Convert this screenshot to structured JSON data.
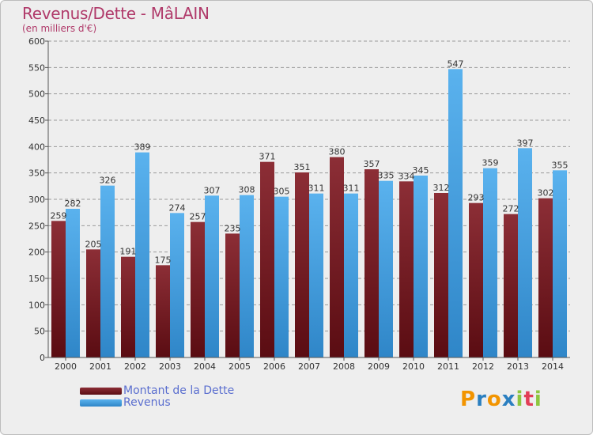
{
  "chart_title": "Revenus/Dette - MâLAIN",
  "chart_subtitle": "(en milliers d'€)",
  "colors": {
    "dette": "#7a1e28",
    "revenus": "#4aa3e0",
    "title": "#b03a6a",
    "legend_text": "#5a6ecf"
  },
  "legend": {
    "dette_label": "Montant de la Dette",
    "revenus_label": "Revenus"
  },
  "logo": {
    "letters": [
      "P",
      "r",
      "o",
      "x",
      "i",
      "t",
      "i"
    ],
    "colors": [
      "#f29400",
      "#2a7fc0",
      "#f29400",
      "#2a7fc0",
      "#8dc63f",
      "#e23e57",
      "#8dc63f"
    ]
  },
  "chart_data": {
    "type": "bar",
    "title": "Revenus/Dette - MâLAIN",
    "subtitle": "(en milliers d'€)",
    "categories": [
      "2000",
      "2001",
      "2002",
      "2003",
      "2004",
      "2005",
      "2006",
      "2007",
      "2008",
      "2009",
      "2010",
      "2011",
      "2012",
      "2013",
      "2014"
    ],
    "series": [
      {
        "name": "Montant de la Dette",
        "values": [
          259,
          205,
          191,
          175,
          257,
          235,
          371,
          351,
          380,
          357,
          334,
          312,
          293,
          272,
          302
        ]
      },
      {
        "name": "Revenus",
        "values": [
          282,
          326,
          389,
          274,
          307,
          308,
          305,
          311,
          311,
          335,
          345,
          547,
          359,
          397,
          355
        ]
      }
    ],
    "value_labels": [
      [
        "259",
        "205",
        "191",
        "175",
        "257",
        "235",
        "371",
        "351",
        "380",
        "357",
        "334",
        "312",
        "293",
        "272",
        "302"
      ],
      [
        "282",
        "326",
        "389",
        "274",
        "307",
        "308",
        "305",
        "311",
        "311",
        "335",
        "345",
        "547",
        "359",
        "397",
        "355"
      ]
    ],
    "ylim": [
      0,
      600
    ],
    "yticks": [
      0,
      50,
      100,
      150,
      200,
      250,
      300,
      350,
      400,
      450,
      500,
      550,
      600
    ],
    "grid": true,
    "legend_position": "bottom-left"
  }
}
